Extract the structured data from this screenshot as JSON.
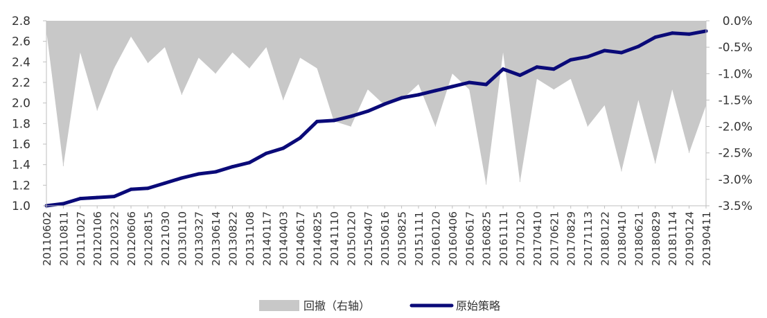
{
  "chart_data": {
    "type": "line",
    "title": "",
    "xlabel": "",
    "ylabel": "",
    "legend_position": "bottom-center",
    "grid": false,
    "y_left": {
      "range": [
        1.0,
        2.8
      ],
      "ticks": [
        1.0,
        1.2,
        1.4,
        1.6,
        1.8,
        2.0,
        2.2,
        2.4,
        2.6,
        2.8
      ],
      "tick_labels": [
        "1.0",
        "1.2",
        "1.4",
        "1.6",
        "1.8",
        "2.0",
        "2.2",
        "2.4",
        "2.6",
        "2.8"
      ]
    },
    "y_right": {
      "range": [
        -3.5,
        0.0
      ],
      "ticks": [
        0.0,
        -0.5,
        -1.0,
        -1.5,
        -2.0,
        -2.5,
        -3.0,
        -3.5
      ],
      "tick_labels": [
        "0.0%",
        "-0.5%",
        "-1.0%",
        "-1.5%",
        "-2.0%",
        "-2.5%",
        "-3.0%",
        "-3.5%"
      ]
    },
    "x_tick_labels": [
      "20110602",
      "20110811",
      "20111027",
      "20120106",
      "20120322",
      "20120606",
      "20120815",
      "20121030",
      "20130110",
      "20130327",
      "20130614",
      "20130822",
      "20131108",
      "20140117",
      "20140403",
      "20140617",
      "20140825",
      "20141110",
      "20150120",
      "20150407",
      "20150616",
      "20150825",
      "20151111",
      "20160120",
      "20160406",
      "20160617",
      "20160825",
      "20161111",
      "20170120",
      "20170410",
      "20170621",
      "20170829",
      "20171113",
      "20180122",
      "20180410",
      "20180621",
      "20180829",
      "20181114",
      "20190124",
      "20190411"
    ],
    "series": [
      {
        "name": "原始策略",
        "axis": "left",
        "style": "line",
        "color": "#0a0a78",
        "values": [
          1.0,
          1.02,
          1.07,
          1.08,
          1.09,
          1.16,
          1.17,
          1.22,
          1.27,
          1.31,
          1.33,
          1.38,
          1.42,
          1.51,
          1.56,
          1.66,
          1.82,
          1.83,
          1.87,
          1.92,
          1.99,
          2.05,
          2.08,
          2.12,
          2.16,
          2.2,
          2.18,
          2.33,
          2.27,
          2.35,
          2.33,
          2.42,
          2.45,
          2.51,
          2.49,
          2.55,
          2.64,
          2.68,
          2.67,
          2.7
        ]
      },
      {
        "name": "回撤（右轴）",
        "axis": "right",
        "style": "area",
        "color": "#c8c8c8",
        "values": [
          -0.2,
          -2.75,
          -0.6,
          -1.7,
          -0.9,
          -0.3,
          -0.8,
          -0.5,
          -1.4,
          -0.7,
          -1.0,
          -0.6,
          -0.9,
          -0.5,
          -1.5,
          -0.7,
          -0.9,
          -1.9,
          -2.0,
          -1.3,
          -1.6,
          -1.5,
          -1.2,
          -2.0,
          -1.0,
          -1.3,
          -3.1,
          -0.6,
          -3.05,
          -1.1,
          -1.3,
          -1.1,
          -2.0,
          -1.6,
          -2.85,
          -1.5,
          -2.7,
          -1.3,
          -2.5,
          -1.6
        ]
      }
    ]
  }
}
